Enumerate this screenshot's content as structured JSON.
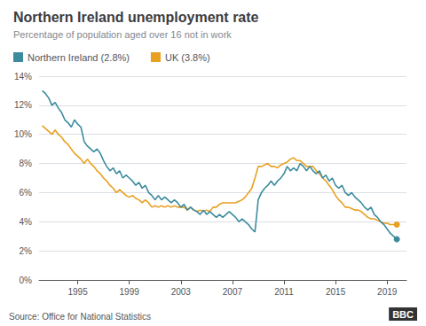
{
  "chart_data": {
    "type": "line",
    "title": "Northern Ireland unemployment rate",
    "subtitle": "Percentage of population aged over 16 not in work",
    "annotations": [
      "Source: Office for National Statistics",
      "BBC"
    ],
    "legend": "upper left",
    "grid": true,
    "xlim": [
      1992.0,
      2020.5
    ],
    "xticks": [
      1995,
      1999,
      2003,
      2007,
      2011,
      2015,
      2019
    ],
    "ylim": [
      0,
      14
    ],
    "yticks": [
      {
        "value": 0,
        "label": "0%"
      },
      {
        "value": 2,
        "label": "2%"
      },
      {
        "value": 4,
        "label": "4%"
      },
      {
        "value": 6,
        "label": "6%"
      },
      {
        "value": 8,
        "label": "8%"
      },
      {
        "value": 10,
        "label": "10%"
      },
      {
        "value": 12,
        "label": "12%"
      },
      {
        "value": 14,
        "label": "14%"
      }
    ],
    "x": [
      1992.25,
      1992.5,
      1992.75,
      1993.0,
      1993.25,
      1993.5,
      1993.75,
      1994.0,
      1994.25,
      1994.5,
      1994.75,
      1995.0,
      1995.25,
      1995.5,
      1995.75,
      1996.0,
      1996.25,
      1996.5,
      1996.75,
      1997.0,
      1997.25,
      1997.5,
      1997.75,
      1998.0,
      1998.25,
      1998.5,
      1998.75,
      1999.0,
      1999.25,
      1999.5,
      1999.75,
      2000.0,
      2000.25,
      2000.5,
      2000.75,
      2001.0,
      2001.25,
      2001.5,
      2001.75,
      2002.0,
      2002.25,
      2002.5,
      2002.75,
      2003.0,
      2003.25,
      2003.5,
      2003.75,
      2004.0,
      2004.25,
      2004.5,
      2004.75,
      2005.0,
      2005.25,
      2005.5,
      2005.75,
      2006.0,
      2006.25,
      2006.5,
      2006.75,
      2007.0,
      2007.25,
      2007.5,
      2007.75,
      2008.0,
      2008.25,
      2008.5,
      2008.75,
      2009.0,
      2009.25,
      2009.5,
      2009.75,
      2010.0,
      2010.25,
      2010.5,
      2010.75,
      2011.0,
      2011.25,
      2011.5,
      2011.75,
      2012.0,
      2012.25,
      2012.5,
      2012.75,
      2013.0,
      2013.25,
      2013.5,
      2013.75,
      2014.0,
      2014.25,
      2014.5,
      2014.75,
      2015.0,
      2015.25,
      2015.5,
      2015.75,
      2016.0,
      2016.25,
      2016.5,
      2016.75,
      2017.0,
      2017.25,
      2017.5,
      2017.75,
      2018.0,
      2018.25,
      2018.5,
      2018.75,
      2019.0,
      2019.25,
      2019.5,
      2019.75
    ],
    "series": [
      {
        "name": "Northern Ireland (2.8%)",
        "color": "#3d8c9e",
        "values": [
          13.0,
          12.8,
          12.5,
          12.0,
          12.2,
          11.8,
          11.5,
          11.0,
          10.8,
          10.5,
          11.0,
          10.7,
          10.5,
          9.5,
          9.2,
          9.0,
          8.8,
          9.0,
          8.7,
          8.2,
          7.8,
          7.5,
          7.7,
          7.3,
          7.5,
          7.0,
          7.2,
          7.0,
          6.8,
          6.5,
          6.7,
          6.3,
          6.5,
          6.0,
          5.8,
          5.5,
          5.8,
          5.5,
          5.7,
          5.5,
          5.3,
          5.5,
          5.3,
          5.0,
          5.2,
          4.8,
          5.0,
          4.8,
          4.7,
          4.5,
          4.8,
          4.5,
          4.7,
          4.5,
          4.3,
          4.5,
          4.3,
          4.5,
          4.7,
          4.5,
          4.3,
          4.0,
          4.2,
          4.0,
          3.8,
          3.5,
          3.3,
          5.5,
          6.0,
          6.3,
          6.5,
          6.8,
          6.5,
          6.8,
          7.0,
          7.3,
          7.8,
          7.5,
          7.7,
          7.5,
          8.0,
          7.8,
          7.5,
          7.8,
          7.5,
          7.3,
          7.5,
          7.0,
          7.2,
          6.8,
          7.0,
          6.5,
          6.3,
          6.5,
          6.0,
          5.8,
          6.0,
          5.7,
          5.5,
          5.3,
          5.0,
          4.8,
          5.0,
          4.5,
          4.3,
          4.0,
          3.8,
          3.5,
          3.2,
          3.0,
          2.8
        ]
      },
      {
        "name": "UK (3.8%)",
        "color": "#e8a020",
        "values": [
          10.6,
          10.4,
          10.2,
          10.0,
          10.3,
          10.0,
          9.8,
          9.5,
          9.3,
          9.0,
          8.7,
          8.5,
          8.3,
          8.0,
          8.3,
          8.0,
          7.8,
          7.5,
          7.3,
          7.0,
          6.8,
          6.5,
          6.3,
          6.0,
          6.2,
          6.0,
          5.8,
          5.7,
          5.8,
          5.6,
          5.5,
          5.3,
          5.5,
          5.3,
          5.0,
          5.1,
          5.0,
          5.1,
          5.0,
          5.1,
          5.0,
          5.1,
          5.0,
          5.0,
          5.0,
          4.8,
          5.0,
          4.8,
          4.7,
          4.8,
          4.7,
          4.8,
          4.7,
          5.0,
          5.0,
          5.2,
          5.3,
          5.3,
          5.3,
          5.3,
          5.3,
          5.4,
          5.5,
          5.7,
          6.0,
          6.3,
          7.0,
          7.8,
          7.8,
          7.9,
          8.0,
          7.8,
          7.8,
          7.7,
          7.9,
          8.0,
          8.1,
          8.3,
          8.4,
          8.2,
          8.2,
          8.0,
          7.8,
          7.8,
          7.8,
          7.5,
          7.3,
          7.0,
          6.8,
          6.5,
          6.2,
          5.8,
          5.5,
          5.3,
          5.0,
          5.0,
          4.9,
          4.8,
          4.8,
          4.7,
          4.5,
          4.3,
          4.2,
          4.2,
          4.1,
          4.0,
          3.9,
          3.9,
          3.8,
          3.8,
          3.8
        ]
      }
    ]
  }
}
